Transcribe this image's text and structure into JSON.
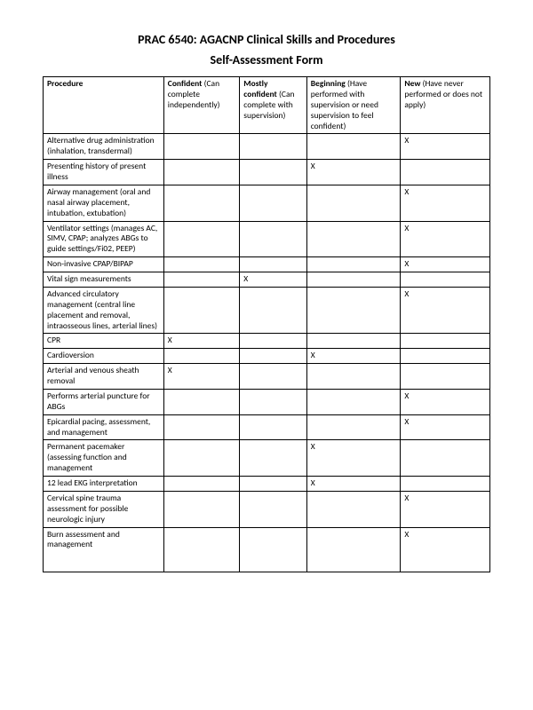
{
  "title": "PRAC 6540: AGACNP Clinical Skills and Procedures",
  "subtitle": "Self-Assessment Form",
  "columns": {
    "c0": {
      "bold": "Procedure",
      "rest": ""
    },
    "c1": {
      "bold": "Confident",
      "rest": " (Can complete independently)"
    },
    "c2": {
      "bold": "Mostly confident",
      "rest": " (Can complete with supervision)"
    },
    "c3": {
      "bold": "Beginning",
      "rest": " (Have performed with supervision or need supervision to feel confident)"
    },
    "c4": {
      "bold": "New",
      "rest": " (Have never performed or does not apply)"
    }
  },
  "mark": "X",
  "rows": [
    {
      "proc": "Alternative drug administration (inhalation, transdermal)",
      "col": 4
    },
    {
      "proc": "Presenting history of present illness",
      "col": 3
    },
    {
      "proc": "Airway management (oral and nasal airway placement, intubation, extubation)",
      "col": 4
    },
    {
      "proc": "Ventilator settings (manages AC, SIMV, CPAP; analyzes ABGs to guide settings/Fi02, PEEP)",
      "col": 4
    },
    {
      "proc": "Non-invasive CPAP/BIPAP",
      "col": 4
    },
    {
      "proc": "Vital sign measurements",
      "col": 2
    },
    {
      "proc": "Advanced circulatory management (central line placement and removal, intraosseous lines, arterial lines)",
      "col": 4
    },
    {
      "proc": "CPR",
      "col": 1
    },
    {
      "proc": "Cardioversion",
      "col": 3
    },
    {
      "proc": "Arterial and venous sheath removal",
      "col": 1
    },
    {
      "proc": "Performs arterial puncture for ABGs",
      "col": 4
    },
    {
      "proc": "Epicardial pacing, assessment, and management",
      "col": 4
    },
    {
      "proc": "Permanent pacemaker (assessing function and management",
      "col": 3
    },
    {
      "proc": "12 lead EKG interpretation",
      "col": 3
    },
    {
      "proc": "Cervical spine trauma assessment for possible neurologic injury",
      "col": 4
    },
    {
      "proc": "Burn assessment and management",
      "col": 4
    }
  ]
}
